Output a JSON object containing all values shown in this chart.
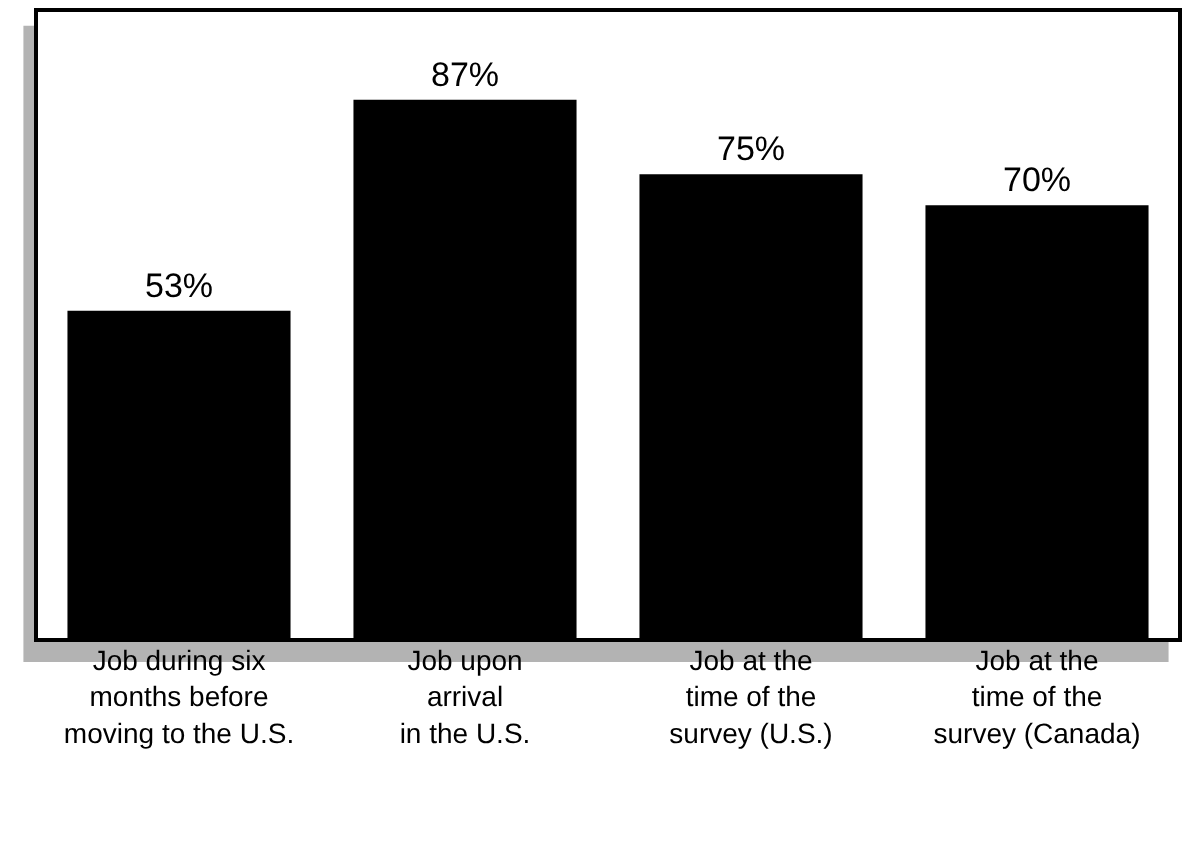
{
  "chart_data": {
    "type": "bar",
    "categories": [
      "Job during six\nmonths before\nmoving to the U.S.",
      "Job upon\narrival\nin the U.S.",
      "Job at the\ntime of the\nsurvey (U.S.)",
      "Job at the\ntime of the\nsurvey (Canada)"
    ],
    "values": [
      53,
      87,
      75,
      70
    ],
    "value_labels": [
      "53%",
      "87%",
      "75%",
      "70%"
    ],
    "color": "#000000",
    "legend": false
  }
}
